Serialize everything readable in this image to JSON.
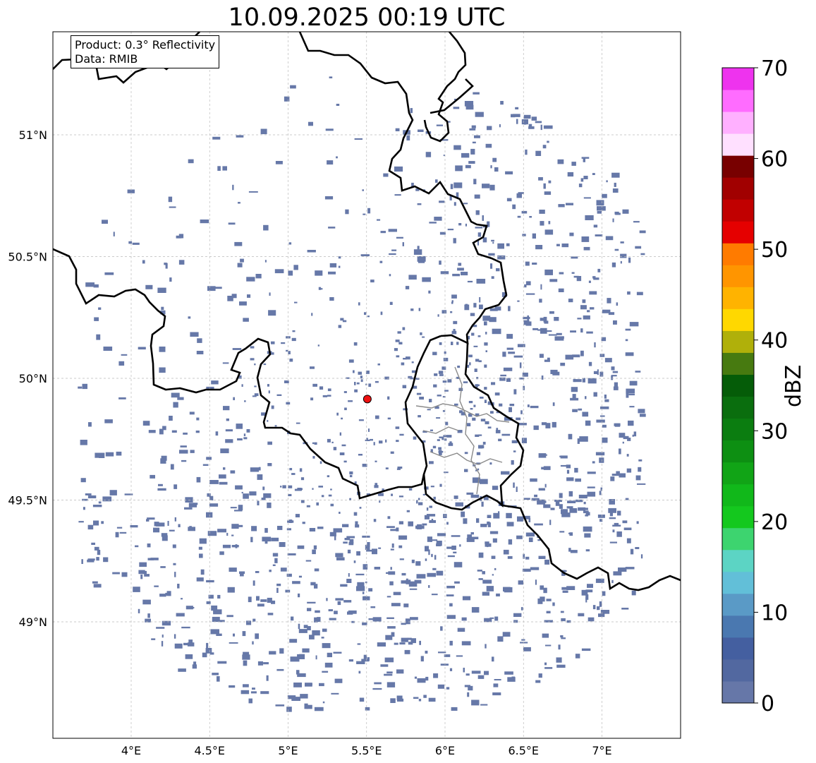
{
  "title": "10.09.2025 00:19 UTC",
  "info": {
    "product": "Product: 0.3° Reflectivity",
    "data_source": "Data: RMIB"
  },
  "map": {
    "lon_ticks": [
      "4°E",
      "4.5°E",
      "5°E",
      "5.5°E",
      "6°E",
      "6.5°E",
      "7°E"
    ],
    "lat_ticks": [
      "51°N",
      "50.5°N",
      "50°N",
      "49.5°N",
      "49°N"
    ],
    "lon_range": [
      3.5,
      7.5
    ],
    "lat_range": [
      48.55,
      51.4
    ],
    "radar_site": {
      "lon": 5.505,
      "lat": 49.915,
      "color": "#ee1111"
    },
    "echo_color": "#6678a8",
    "border_color": "#000000",
    "subregion_border_color": "#8a8a8a",
    "grid_color": "#bbbbbb"
  },
  "colorbar": {
    "label": "dBZ",
    "min": 0,
    "max": 70,
    "step": 2.5,
    "ticks": [
      "0",
      "10",
      "20",
      "30",
      "40",
      "50",
      "60",
      "70"
    ],
    "colors": [
      "#6677a8",
      "#5268a0",
      "#445fa0",
      "#4a78b0",
      "#5a9ac6",
      "#62bfd8",
      "#5cd4c4",
      "#3dd46f",
      "#14c81e",
      "#11b81a",
      "#11a416",
      "#0d8f12",
      "#0b7d10",
      "#0a6e0e",
      "#055c08",
      "#477a10",
      "#b0b00a",
      "#ffd800",
      "#ffb300",
      "#ff9500",
      "#ff7b00",
      "#e50000",
      "#c10000",
      "#a10000",
      "#780000",
      "#ffe0ff",
      "#ffb0ff",
      "#ff6cff",
      "#ee33ee"
    ]
  }
}
